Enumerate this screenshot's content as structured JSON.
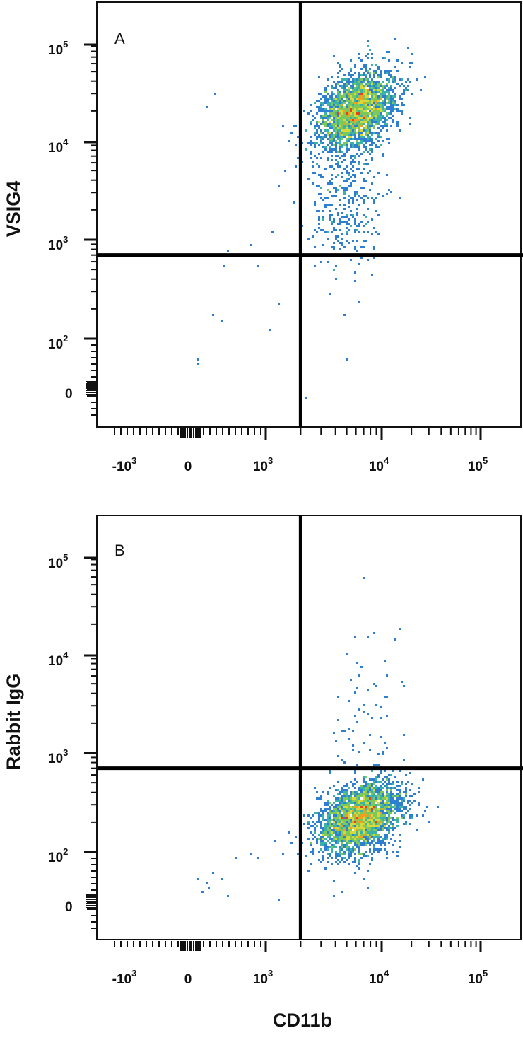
{
  "figure": {
    "x_axis_label": "CD11b",
    "colormap": [
      "#1f3fb0",
      "#2f7fd0",
      "#39b3a8",
      "#7cc85a",
      "#d7d93a",
      "#f0a020",
      "#e8401c"
    ],
    "quadrant_line_color": "#000000"
  },
  "chart_data": [
    {
      "type": "scatter",
      "style": "flow-cytometry density dot plot",
      "panel_label": "A",
      "ylabel": "VSIG4",
      "xlabel": "CD11b",
      "x_ticks": [
        {
          "base": "-10",
          "exp": "3",
          "value": -1000
        },
        {
          "base": "0",
          "exp": "",
          "value": 0
        },
        {
          "base": "10",
          "exp": "3",
          "value": 1000
        },
        {
          "base": "10",
          "exp": "4",
          "value": 10000
        },
        {
          "base": "10",
          "exp": "5",
          "value": 100000
        }
      ],
      "y_ticks": [
        {
          "base": "0",
          "exp": "",
          "value": 0
        },
        {
          "base": "10",
          "exp": "2",
          "value": 100
        },
        {
          "base": "10",
          "exp": "3",
          "value": 1000
        },
        {
          "base": "10",
          "exp": "4",
          "value": 10000
        },
        {
          "base": "10",
          "exp": "5",
          "value": 100000
        }
      ],
      "quadrant_gate": {
        "x": 2000,
        "y": 700
      },
      "population": {
        "x_center": 6000,
        "y_center": 20000,
        "x_spread_decades": 0.17,
        "y_spread_decades": 0.22,
        "n_events": 2600
      },
      "tail_population": {
        "x_center": 5000,
        "y_center": 2500,
        "n_events": 320
      },
      "sparse_events": [
        [
          110,
          60
        ],
        [
          100,
          50
        ],
        [
          300,
          170
        ],
        [
          400,
          150
        ],
        [
          450,
          550
        ],
        [
          500,
          750
        ],
        [
          800,
          900
        ],
        [
          900,
          550
        ],
        [
          1100,
          120
        ],
        [
          1150,
          1200
        ],
        [
          1300,
          220
        ],
        [
          1500,
          5000
        ],
        [
          1300,
          3500
        ],
        [
          1700,
          12000
        ],
        [
          1850,
          9000
        ],
        [
          3000,
          600
        ],
        [
          4000,
          400
        ],
        [
          4800,
          170
        ],
        [
          6500,
          230
        ],
        [
          5500,
          620
        ],
        [
          2200,
          -20
        ],
        [
          3500,
          280
        ],
        [
          5000,
          60
        ],
        [
          6000,
          380
        ],
        [
          220,
          22000
        ],
        [
          330,
          30000
        ],
        [
          1400,
          14000
        ],
        [
          1600,
          10000
        ],
        [
          2600,
          550
        ],
        [
          3800,
          500
        ]
      ]
    },
    {
      "type": "scatter",
      "style": "flow-cytometry density dot plot",
      "panel_label": "B",
      "ylabel": "Rabbit IgG",
      "xlabel": "CD11b",
      "x_ticks": [
        {
          "base": "-10",
          "exp": "3",
          "value": -1000
        },
        {
          "base": "0",
          "exp": "",
          "value": 0
        },
        {
          "base": "10",
          "exp": "3",
          "value": 1000
        },
        {
          "base": "10",
          "exp": "4",
          "value": 10000
        },
        {
          "base": "10",
          "exp": "5",
          "value": 100000
        }
      ],
      "y_ticks": [
        {
          "base": "0",
          "exp": "",
          "value": 0
        },
        {
          "base": "10",
          "exp": "2",
          "value": 100
        },
        {
          "base": "10",
          "exp": "3",
          "value": 1000
        },
        {
          "base": "10",
          "exp": "4",
          "value": 10000
        },
        {
          "base": "10",
          "exp": "5",
          "value": 100000
        }
      ],
      "quadrant_gate": {
        "x": 2000,
        "y": 700
      },
      "population": {
        "x_center": 6500,
        "y_center": 220,
        "x_spread_decades": 0.18,
        "y_spread_decades": 0.2,
        "n_events": 2800
      },
      "tail_population": {
        "x_center": 8000,
        "y_center": 1400,
        "n_events": 70
      },
      "sparse_events": [
        [
          100,
          45
        ],
        [
          150,
          20
        ],
        [
          200,
          35
        ],
        [
          250,
          30
        ],
        [
          300,
          60
        ],
        [
          400,
          45
        ],
        [
          500,
          12
        ],
        [
          600,
          90
        ],
        [
          800,
          95
        ],
        [
          900,
          88
        ],
        [
          1200,
          130
        ],
        [
          1400,
          95
        ],
        [
          1300,
          3
        ],
        [
          1600,
          160
        ],
        [
          1800,
          140
        ],
        [
          7000,
          60000
        ],
        [
          15000,
          18000
        ],
        [
          5000,
          10000
        ],
        [
          5500,
          5500
        ],
        [
          6500,
          6000
        ],
        [
          6000,
          4000
        ],
        [
          7000,
          3000
        ],
        [
          6200,
          2000
        ],
        [
          8000,
          1500
        ],
        [
          3800,
          12
        ],
        [
          4500,
          20
        ],
        [
          7500,
          30
        ]
      ]
    }
  ]
}
